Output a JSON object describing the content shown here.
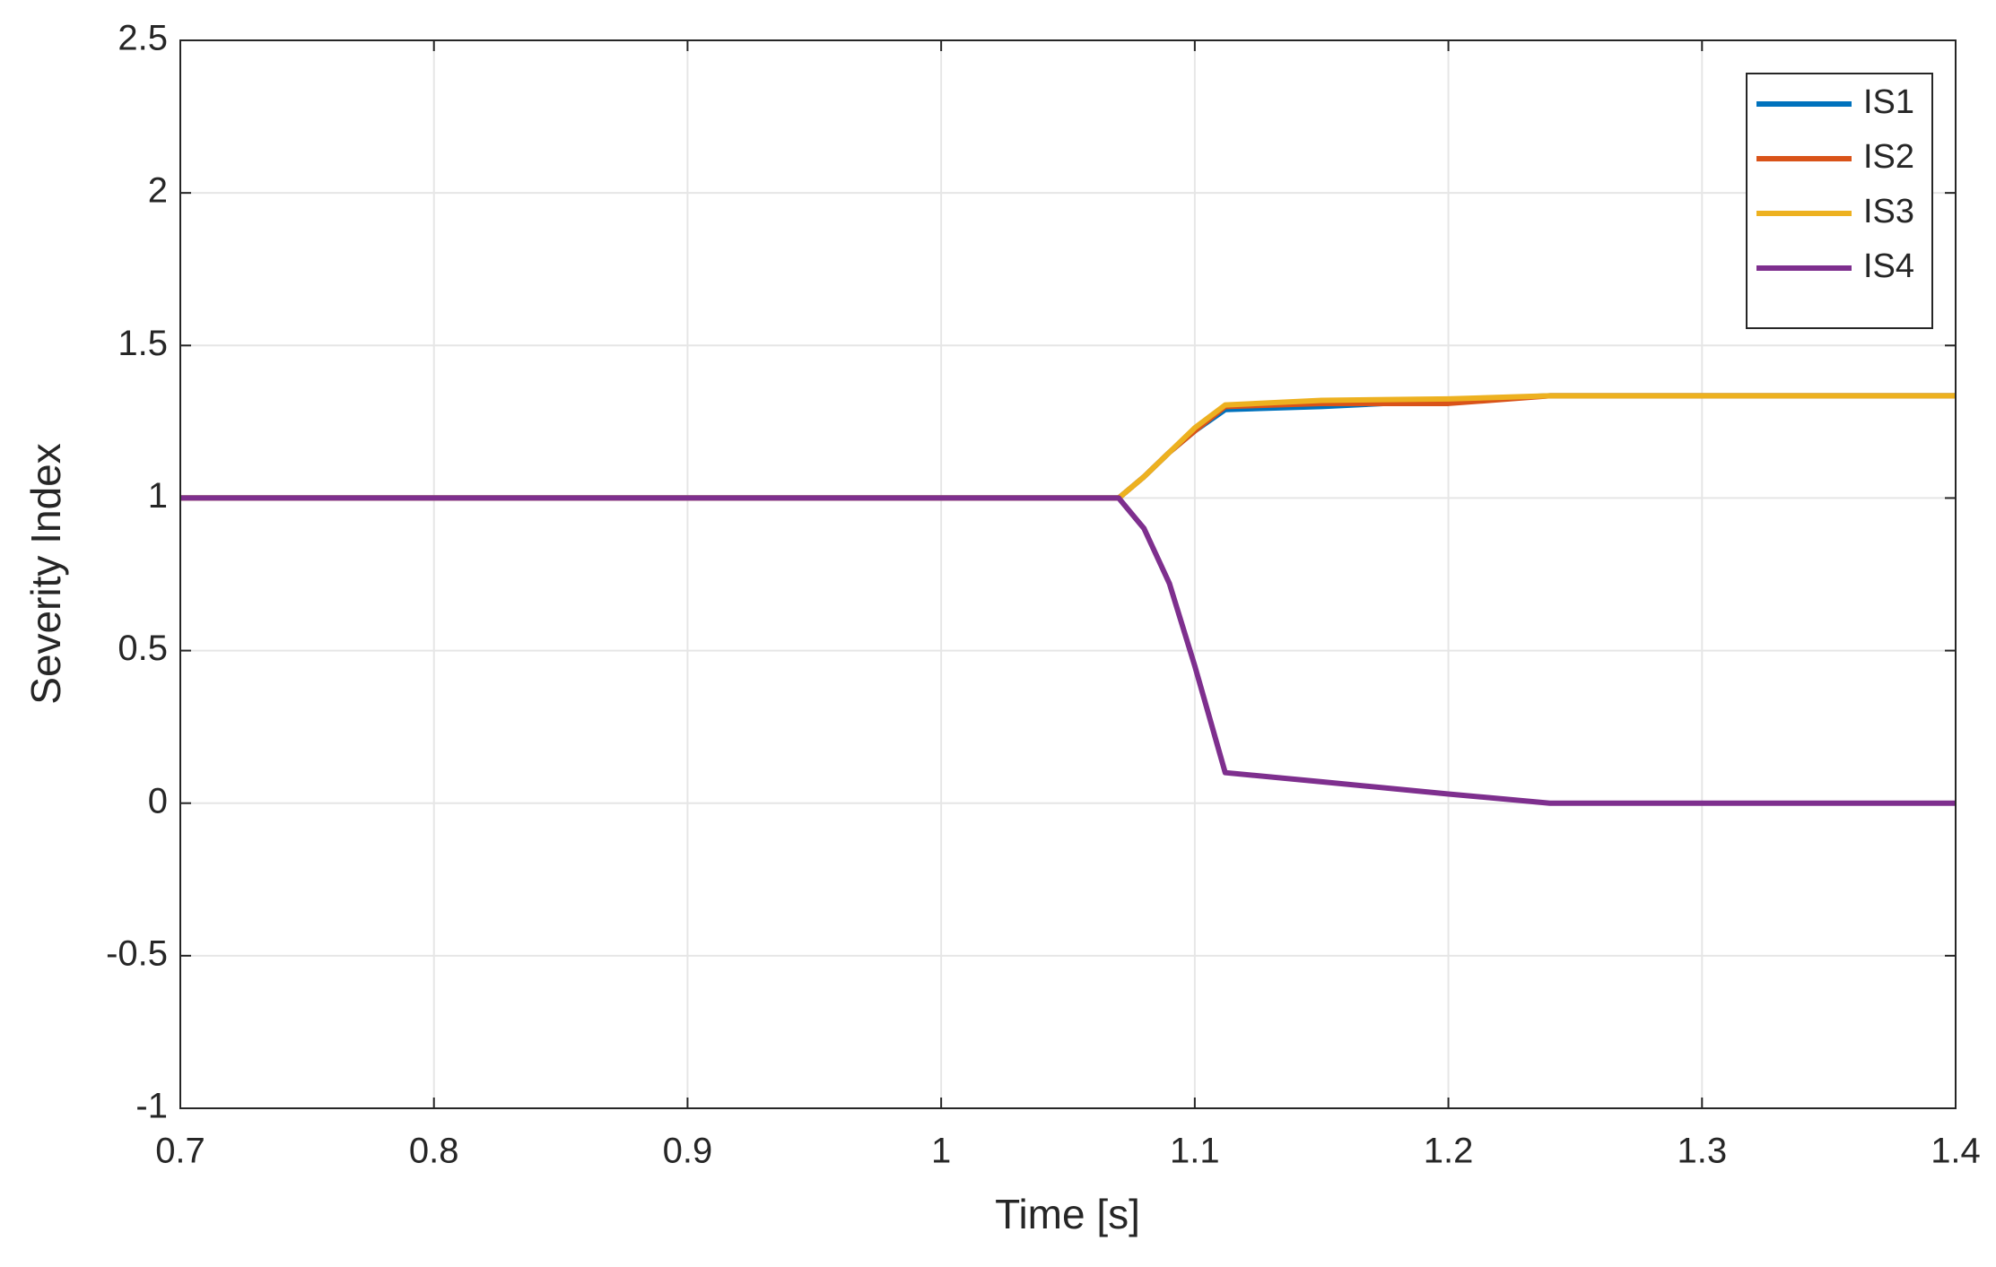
{
  "chart_data": {
    "type": "line",
    "x": [
      0.7,
      1.07,
      1.08,
      1.09,
      1.1,
      1.112,
      1.15,
      1.2,
      1.24,
      1.4
    ],
    "series": [
      {
        "name": "IS1",
        "color": "#0072BD",
        "values": [
          1,
          1,
          1.07,
          1.15,
          1.22,
          1.29,
          1.3,
          1.32,
          1.335,
          1.335
        ]
      },
      {
        "name": "IS2",
        "color": "#D95319",
        "values": [
          1,
          1,
          1.07,
          1.15,
          1.22,
          1.3,
          1.31,
          1.31,
          1.335,
          1.335
        ]
      },
      {
        "name": "IS3",
        "color": "#EDB120",
        "values": [
          1,
          1,
          1.07,
          1.15,
          1.23,
          1.305,
          1.32,
          1.325,
          1.335,
          1.335
        ]
      },
      {
        "name": "IS4",
        "color": "#7E2F8E",
        "values": [
          1,
          1,
          0.9,
          0.72,
          0.45,
          0.1,
          0.07,
          0.03,
          0,
          0
        ]
      }
    ],
    "xlabel": "Time [s]",
    "ylabel": "Severity Index",
    "xlim": [
      0.7,
      1.4
    ],
    "xticks": [
      0.7,
      0.8,
      0.9,
      1,
      1.1,
      1.2,
      1.3,
      1.4
    ],
    "ylim": [
      -1,
      2.5
    ],
    "yticks": [
      -1,
      -0.5,
      0,
      0.5,
      1,
      1.5,
      2,
      2.5
    ],
    "grid": true,
    "legend": "northeast"
  }
}
